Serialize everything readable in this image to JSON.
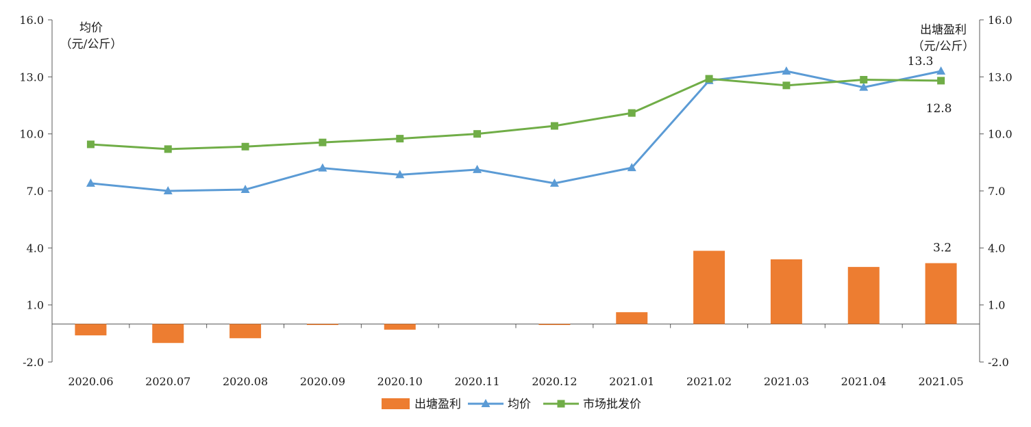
{
  "chart_data": {
    "type": "bar+line",
    "categories": [
      "2020.06",
      "2020.07",
      "2020.08",
      "2020.09",
      "2020.10",
      "2020.11",
      "2020.12",
      "2021.01",
      "2021.02",
      "2021.03",
      "2021.04",
      "2021.05"
    ],
    "y_left": {
      "title_line1": "均价",
      "title_line2": "（元/公斤）",
      "ylim": [
        -2.0,
        16.0
      ],
      "ticks": [
        "-2.0",
        "1.0",
        "4.0",
        "7.0",
        "10.0",
        "13.0",
        "16.0"
      ]
    },
    "y_right": {
      "title_line1": "出塘盈利",
      "title_line2": "（元/公斤）",
      "ylim": [
        -2.0,
        16.0
      ],
      "ticks": [
        "-2.0",
        "1.0",
        "4.0",
        "7.0",
        "10.0",
        "13.0",
        "16.0"
      ]
    },
    "series": [
      {
        "name": "出塘盈利",
        "kind": "bar",
        "color": "#ED7D31",
        "values": [
          -0.6,
          -1.0,
          -0.75,
          -0.05,
          -0.3,
          0.0,
          -0.05,
          0.62,
          3.85,
          3.4,
          3.0,
          3.2
        ]
      },
      {
        "name": "均价",
        "kind": "line",
        "marker": "triangle",
        "color": "#5B9BD5",
        "values": [
          7.4,
          7.0,
          7.07,
          8.2,
          7.85,
          8.12,
          7.4,
          8.22,
          12.8,
          13.3,
          12.45,
          13.3
        ]
      },
      {
        "name": "市场批发价",
        "kind": "line",
        "marker": "square",
        "color": "#70AD47",
        "values": [
          9.45,
          9.2,
          9.33,
          9.55,
          9.75,
          10.0,
          10.42,
          11.1,
          12.9,
          12.55,
          12.85,
          12.8
        ]
      }
    ],
    "annotations": [
      {
        "text": "13.3",
        "series": "均价",
        "category": "2021.05"
      },
      {
        "text": "12.8",
        "series": "市场批发价",
        "category": "2021.05"
      },
      {
        "text": "3.2",
        "series": "出塘盈利",
        "category": "2021.05"
      }
    ],
    "legend": [
      "出塘盈利",
      "均价",
      "市场批发价"
    ],
    "legend_position": "bottom"
  }
}
